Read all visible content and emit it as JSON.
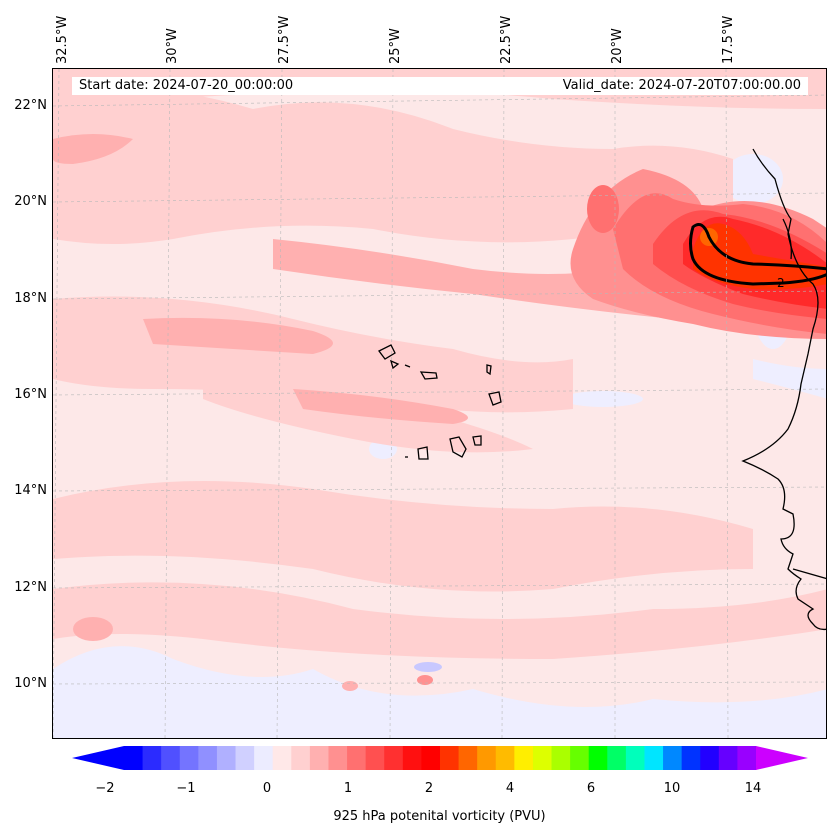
{
  "longitude_labels": [
    "32.5°W",
    "30°W",
    "27.5°W",
    "25°W",
    "22.5°W",
    "20°W",
    "17.5°W"
  ],
  "latitude_labels": [
    "22°N",
    "20°N",
    "18°N",
    "16°N",
    "14°N",
    "12°N",
    "10°N"
  ],
  "info": {
    "start_date": "Start date: 2024-07-20_00:00:00",
    "valid_date": "Valid_date: 2024-07-20T07:00:00.00"
  },
  "contour_label": "2",
  "colorbar": {
    "ticks": [
      "−2",
      "−1",
      "0",
      "1",
      "2",
      "4",
      "6",
      "10",
      "14"
    ],
    "label": "925 hPa potenital vorticity (PVU)",
    "colors": [
      "#0000ff",
      "#2b2bff",
      "#5050ff",
      "#7474ff",
      "#9090ff",
      "#b0b0ff",
      "#d0d0ff",
      "#ececff",
      "#ffe8e8",
      "#ffd0d0",
      "#ffb0b0",
      "#ff9090",
      "#ff7070",
      "#ff5050",
      "#ff3030",
      "#ff1010",
      "#ff0000",
      "#ff3300",
      "#ff6600",
      "#ff9900",
      "#ffbb00",
      "#ffee00",
      "#ddff00",
      "#aaff00",
      "#66ff00",
      "#00ff00",
      "#00ff66",
      "#00ffbb",
      "#00e5ff",
      "#0088ff",
      "#0033ff",
      "#2200ff",
      "#6600ff",
      "#9900ff"
    ],
    "extend_min_color": "#0000ff",
    "extend_max_color": "#cc00ff"
  }
}
